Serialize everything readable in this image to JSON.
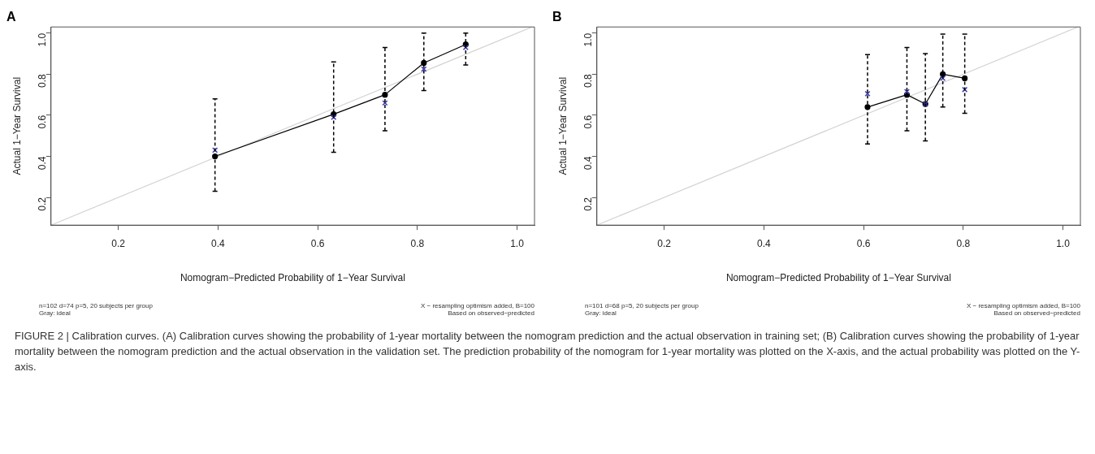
{
  "chart_data": [
    {
      "type": "line",
      "title": "A",
      "xlabel": "Nomogram−Predicted Probability of 1−Year Survival",
      "ylabel": "Actual 1−Year Survival",
      "xlim": [
        0.065,
        1.035
      ],
      "ylim": [
        0.065,
        1.03
      ],
      "xticks": [
        0.2,
        0.4,
        0.6,
        0.8,
        {
          "value": 1,
          "label": "1.0"
        }
      ],
      "yticks": [
        0.2,
        0.4,
        0.6,
        0.8,
        {
          "value": 1,
          "label": "1.0"
        }
      ],
      "grid": false,
      "legend": false,
      "series": [
        {
          "color": "#d3d3d3",
          "marker": "none",
          "x": [
            0.065,
            1.03
          ],
          "values": [
            0.065,
            1.03
          ]
        },
        {
          "color": "#000000",
          "marker": "circle",
          "line_style": "solid",
          "x": [
            0.394,
            0.632,
            0.735,
            0.813,
            0.897
          ],
          "values": [
            0.4,
            0.605,
            0.7,
            0.855,
            0.945
          ],
          "errors": [
            [
              0.23,
              0.68
            ],
            [
              0.42,
              0.86
            ],
            [
              0.525,
              0.93
            ],
            [
              0.72,
              1.0
            ],
            [
              0.845,
              1.0
            ]
          ]
        },
        {
          "type": "scatter",
          "color": "#3b3bb0",
          "marker": "cross",
          "x": [
            0.394,
            0.632,
            0.735,
            0.813,
            0.897
          ],
          "values": [
            0.43,
            0.59,
            0.66,
            0.825,
            0.93
          ]
        }
      ],
      "annotations": [
        "n=102 d=74 p=5, 20 subjects per group",
        "Gray: ideal",
        "X − resampling optimism added, B=100",
        "Based on observed−predicted",
        "FIGURE 2 | Calibration curves. (A) Calibration curves showing the probability of 1-year mortality between the nomogram prediction and the actual observation in training set; (B) Calibration curves showing the probability of 1-year mortality between the nomogram prediction and the actual observation in the validation set. The prediction probability of the nomogram for 1-year mortality was plotted on the X-axis, and the actual probability was plotted on the Y-axis."
      ]
    },
    {
      "type": "line",
      "title": "B",
      "xlabel": "Nomogram−Predicted Probability of 1−Year Survival",
      "ylabel": "Actual 1−Year Survival",
      "xlim": [
        0.065,
        1.035
      ],
      "ylim": [
        0.065,
        1.03
      ],
      "xticks": [
        0.2,
        0.4,
        0.6,
        0.8,
        {
          "value": 1,
          "label": "1.0"
        }
      ],
      "yticks": [
        0.2,
        0.4,
        0.6,
        0.8,
        {
          "value": 1,
          "label": "1.0"
        }
      ],
      "grid": false,
      "legend": false,
      "series": [
        {
          "color": "#d3d3d3",
          "marker": "none",
          "x": [
            0.065,
            1.03
          ],
          "values": [
            0.065,
            1.03
          ]
        },
        {
          "color": "#000000",
          "marker": "circle",
          "line_style": "solid",
          "x": [
            0.608,
            0.687,
            0.724,
            0.759,
            0.803
          ],
          "values": [
            0.64,
            0.7,
            0.655,
            0.8,
            0.78
          ],
          "errors": [
            [
              0.46,
              0.895
            ],
            [
              0.525,
              0.93
            ],
            [
              0.475,
              0.9
            ],
            [
              0.64,
              0.995
            ],
            [
              0.61,
              0.995
            ]
          ]
        },
        {
          "type": "scatter",
          "color": "#3b3bb0",
          "marker": "cross",
          "x": [
            0.608,
            0.687,
            0.724,
            0.759,
            0.803
          ],
          "values": [
            0.705,
            0.715,
            0.655,
            0.78,
            0.725
          ]
        }
      ],
      "annotations": [
        "n=101 d=68 p=5, 20 subjects per group",
        "Gray: ideal",
        "X − resampling optimism added, B=100",
        "Based on observed−predicted"
      ]
    }
  ]
}
